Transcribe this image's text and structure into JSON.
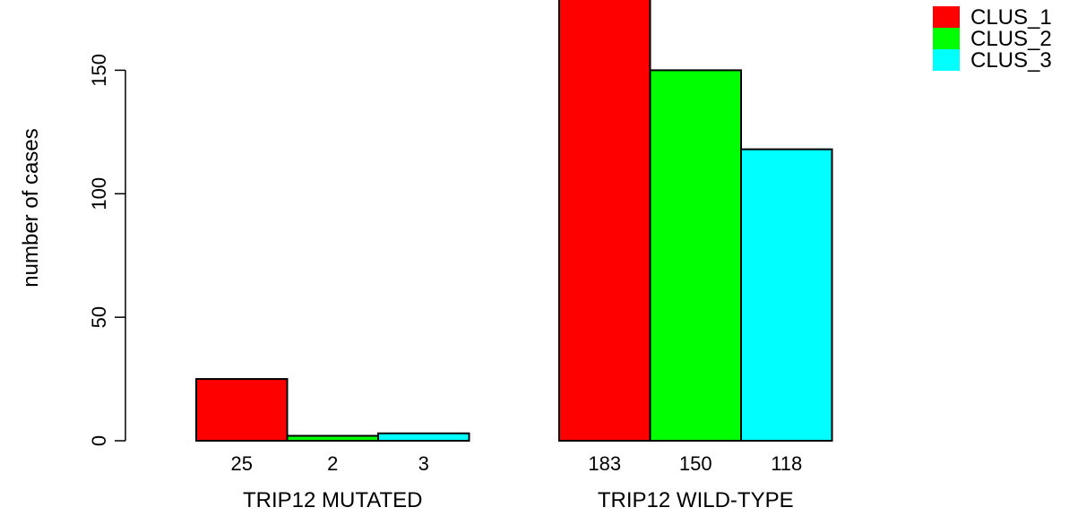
{
  "chart_data": {
    "type": "bar",
    "groups": [
      "TRIP12 MUTATED",
      "TRIP12 WILD-TYPE"
    ],
    "series": [
      {
        "name": "CLUS_1",
        "color": "#ff0000",
        "values": [
          25,
          183
        ]
      },
      {
        "name": "CLUS_2",
        "color": "#00ff00",
        "values": [
          2,
          150
        ]
      },
      {
        "name": "CLUS_3",
        "color": "#00ffff",
        "values": [
          3,
          118
        ]
      }
    ],
    "bar_labels": [
      [
        "25",
        "2",
        "3"
      ],
      [
        "183",
        "150",
        "118"
      ]
    ],
    "ylabel": "number of cases",
    "yticks": [
      0,
      50,
      100,
      150
    ],
    "ytick_labels": [
      "0",
      "50",
      "100",
      "150"
    ],
    "ylim": [
      0,
      180
    ],
    "legend": {
      "position": "top-right",
      "entries": [
        "CLUS_1",
        "CLUS_2",
        "CLUS_3"
      ]
    }
  }
}
